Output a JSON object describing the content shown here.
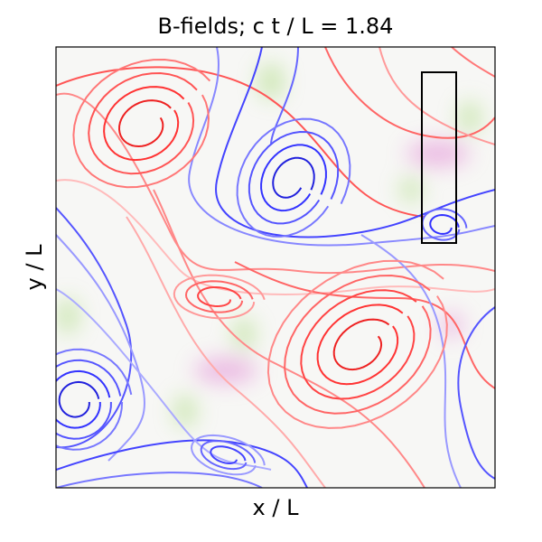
{
  "chart_data": {
    "type": "streamplot",
    "title": "B-fields; c t / L = 1.84",
    "xlabel": "x / L",
    "ylabel": "y / L"
  }
}
